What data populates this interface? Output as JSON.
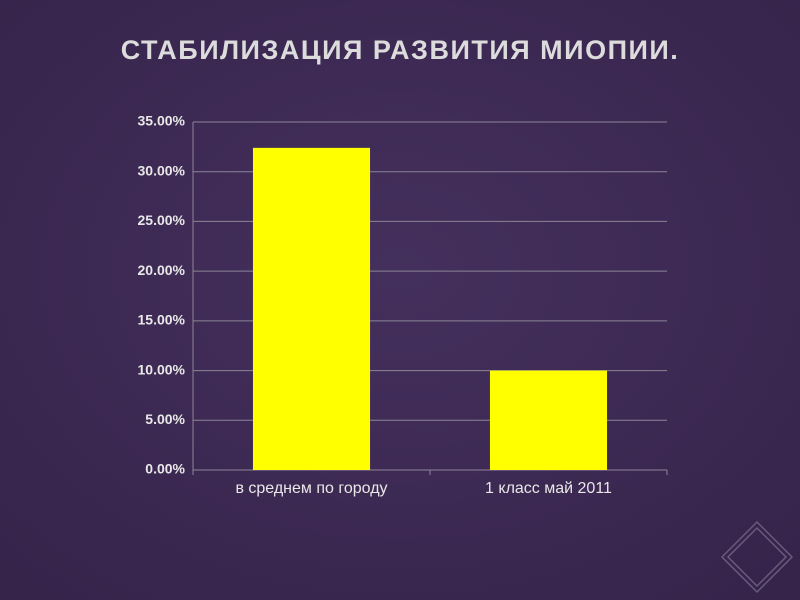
{
  "chart_data": {
    "type": "bar",
    "title": "СТАБИЛИЗАЦИЯ РАЗВИТИЯ МИОПИИ.",
    "categories": [
      "в среднем по городу",
      "1 класс май 2011"
    ],
    "values": [
      32.4,
      10
    ],
    "color": "#ffff00",
    "ylim": [
      0,
      35
    ],
    "yticks": [
      {
        "value": 0,
        "label": "0.00%"
      },
      {
        "value": 5,
        "label": "5.00%"
      },
      {
        "value": 10,
        "label": "10.00%"
      },
      {
        "value": 15,
        "label": "15.00%"
      },
      {
        "value": 20,
        "label": "20.00%"
      },
      {
        "value": 25,
        "label": "25.00%"
      },
      {
        "value": 30,
        "label": "30.00%"
      },
      {
        "value": 35,
        "label": "35.00%"
      }
    ],
    "grid": true
  }
}
